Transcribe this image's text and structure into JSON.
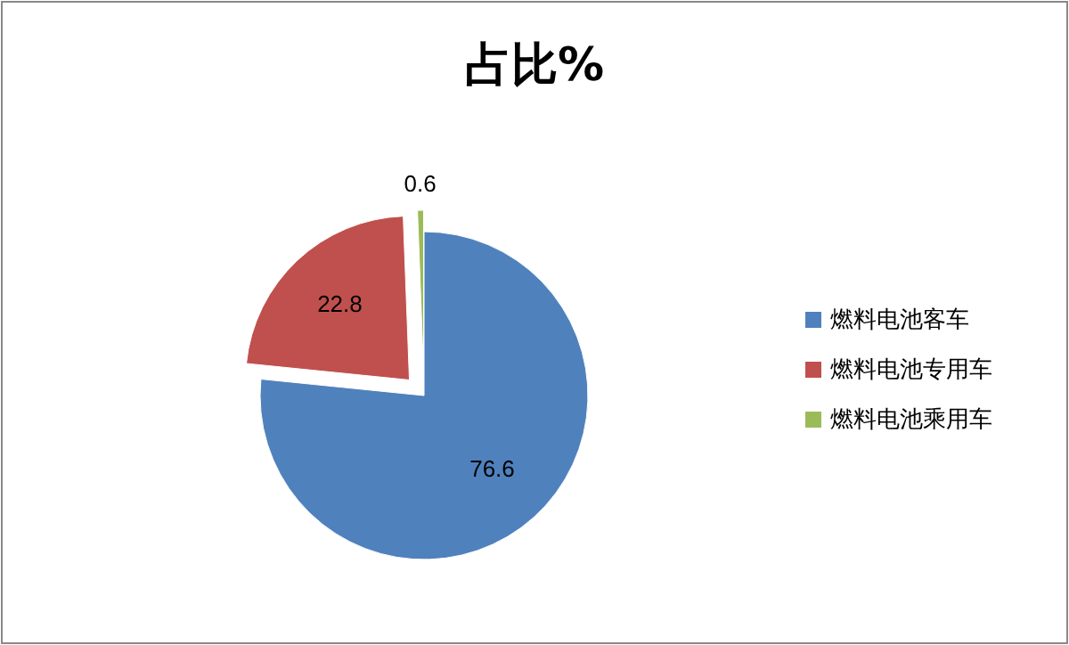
{
  "chart_data": {
    "type": "pie",
    "title": "占比%",
    "categories": [
      "燃料电池客车",
      "燃料电池专用车",
      "燃料电池乘用车"
    ],
    "values": [
      76.6,
      22.8,
      0.6
    ],
    "colors": [
      "#4f81bd",
      "#c0504d",
      "#9bbb59"
    ],
    "data_labels": true,
    "legend": "right"
  }
}
